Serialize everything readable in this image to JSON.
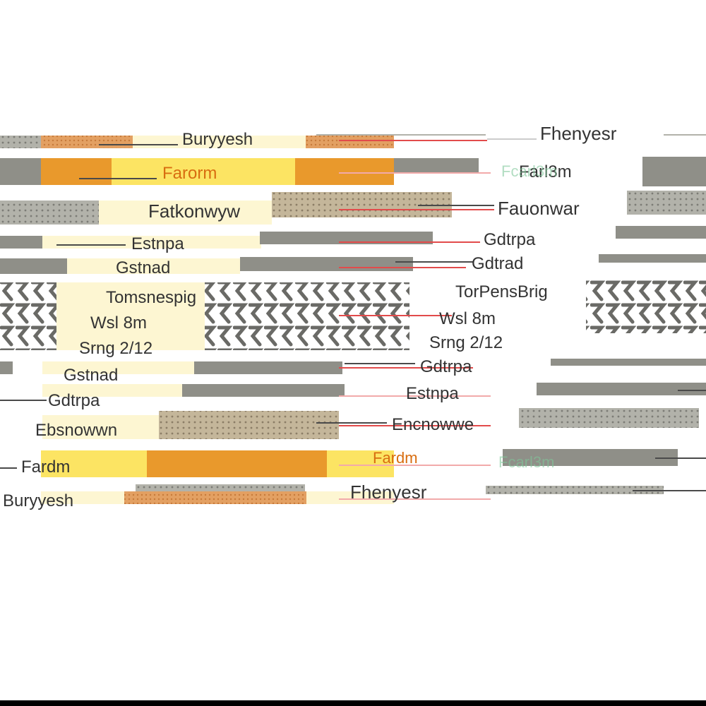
{
  "colors": {
    "background": "#ffffff",
    "cream": "#fdf6d2",
    "yellow": "#fce463",
    "orange": "#e9992c",
    "orange_speckle": "#e3a062",
    "gray": "#8f8f88",
    "gray_light": "#b2b2aa",
    "beige_dots": "#c4b69a",
    "red_line": "#e24b4b",
    "pink_line": "#f2aaaa",
    "dark_line": "#4a4a4a",
    "green_text": "#7fc79a",
    "label_dark": "#333333",
    "label_orange": "#d86d10"
  },
  "rows": [
    {
      "left": "Buryyesh",
      "right": "Fhenyesr",
      "fill": "orange-speckle"
    },
    {
      "left": "Farorm",
      "right": "Farl3m",
      "right_highlight": "Fcarl3m",
      "fill": "orange-yellow"
    },
    {
      "left": "Fatkonwyw",
      "right": "Fauonwar",
      "fill": "gray-dots"
    },
    {
      "left": "Estnpa",
      "right": "Gdtrpa",
      "fill": "gray"
    },
    {
      "left": "Gstnad",
      "right": "Gdtrad",
      "fill": "gray"
    },
    {
      "left": "Tomsnespig",
      "right": "TorPensBrig",
      "fill": "zigzag"
    },
    {
      "left": "Wsl 8m",
      "right": "Wsl 8m",
      "fill": "zigzag"
    },
    {
      "left": "Srng 2/12",
      "right": "Srng 2/12",
      "fill": "zigzag"
    },
    {
      "left": "Gstnad",
      "right": "Gdtrpa",
      "fill": "gray"
    },
    {
      "left": "Gdtrpa",
      "right": "Estnpa",
      "fill": "gray"
    },
    {
      "left": "Ebsnowwn",
      "right": "Encnowwe",
      "fill": "beige-dots"
    },
    {
      "left": "Fardm",
      "right": "Fardm",
      "right_highlight": "Fcarl3m",
      "fill": "orange-yellow"
    },
    {
      "left": "Buryyesh",
      "right": "Fhenyesr",
      "fill": "orange-speckle"
    }
  ]
}
